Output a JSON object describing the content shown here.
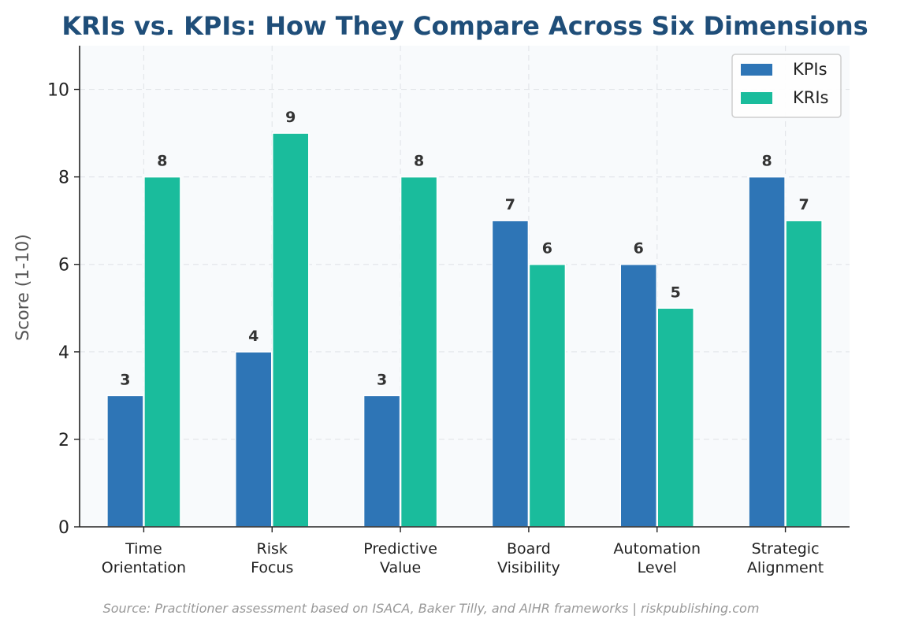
{
  "chart_data": {
    "type": "bar",
    "title": "KRIs vs. KPIs: How They Compare Across Six Dimensions",
    "xlabel": "",
    "ylabel": "Score (1-10)",
    "ylim": [
      0,
      11
    ],
    "yticks": [
      0,
      2,
      4,
      6,
      8,
      10
    ],
    "grid": true,
    "legend_position": "top-right",
    "categories": [
      [
        "Time",
        "Orientation"
      ],
      [
        "Risk",
        "Focus"
      ],
      [
        "Predictive",
        "Value"
      ],
      [
        "Board",
        "Visibility"
      ],
      [
        "Automation",
        "Level"
      ],
      [
        "Strategic",
        "Alignment"
      ]
    ],
    "series": [
      {
        "name": "KPIs",
        "color": "#2e75b6",
        "values": [
          3,
          4,
          3,
          7,
          6,
          8
        ]
      },
      {
        "name": "KRIs",
        "color": "#1abc9c",
        "values": [
          8,
          9,
          8,
          6,
          5,
          7
        ]
      }
    ],
    "source": "Source: Practitioner assessment based on ISACA, Baker Tilly, and AIHR frameworks | riskpublishing.com"
  }
}
